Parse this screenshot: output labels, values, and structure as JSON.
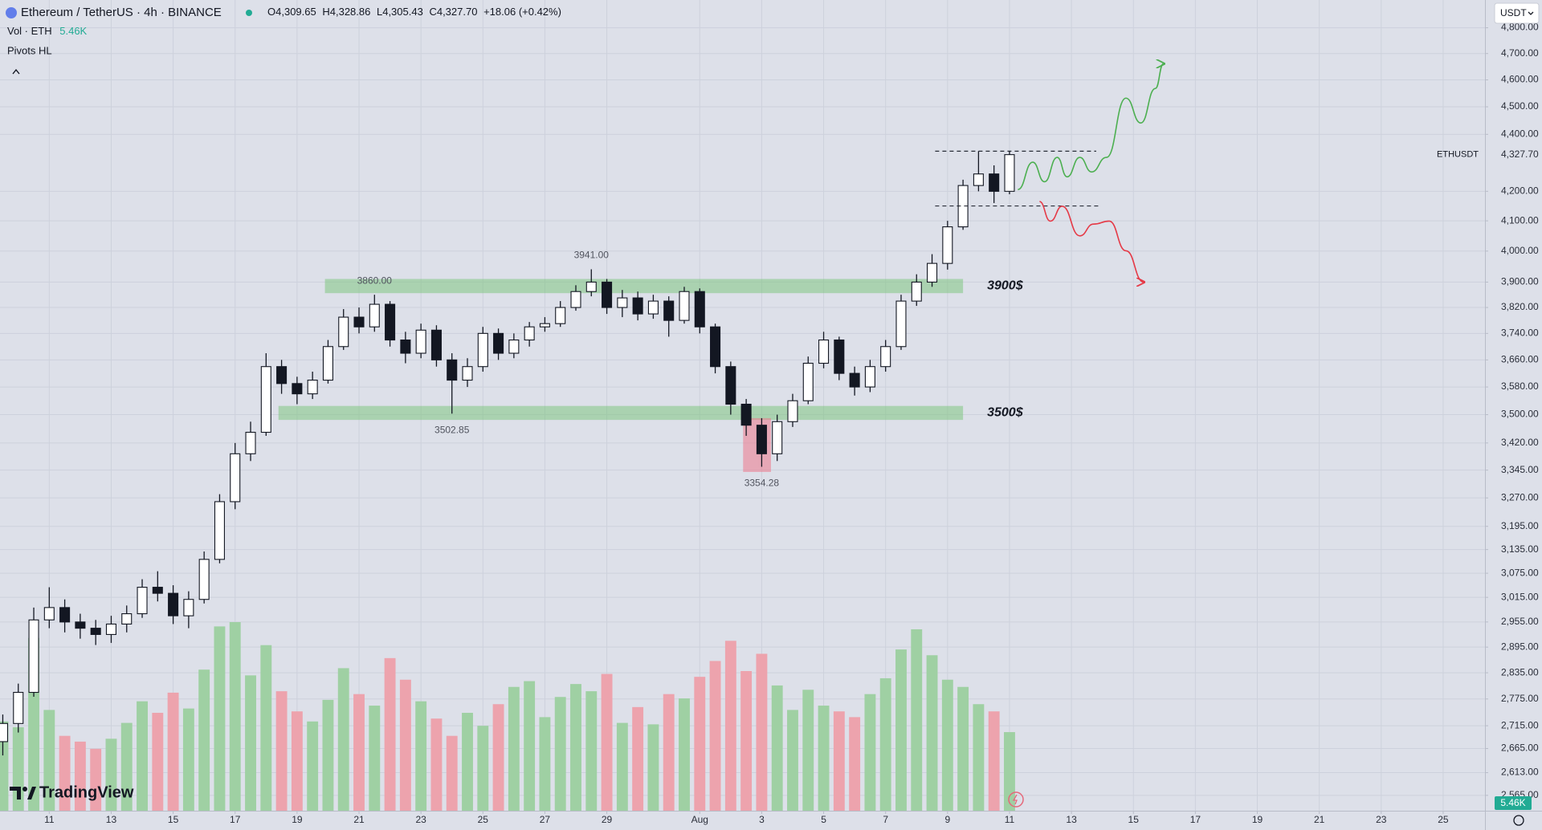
{
  "chart_data": {
    "type": "candlestick",
    "title": "Ethereum / TetherUS · 4h · BINANCE",
    "ohlc_legend": [
      {
        "key": "O",
        "label": "4,309.65"
      },
      {
        "key": "H",
        "label": "4,328.86"
      },
      {
        "key": "L",
        "label": "4,305.43"
      },
      {
        "key": "C",
        "label": "4,327.70"
      }
    ],
    "change": "+18.06 (+0.42%)",
    "volume_name": "Vol · ETH",
    "volume_last_label": "5.46K",
    "indicator": "Pivots HL",
    "currency": "USDT",
    "brand": "TradingView",
    "last_price": {
      "value": 4327.7,
      "label": "4,327.70"
    },
    "last_price_tag": "ETHUSDT",
    "log_scale": true,
    "grid": true,
    "up_color": "#ffffff",
    "down_color": "#131722",
    "volume_up_color": "#9fd0a3",
    "volume_down_color": "#eda3ad",
    "xlim": [
      9.41,
      57.35
    ],
    "xticks": [
      11,
      13,
      15,
      17,
      19,
      21,
      23,
      25,
      27,
      29,
      {
        "value": 32,
        "label": "Aug"
      },
      {
        "value": 34,
        "label": "3"
      },
      {
        "value": 36,
        "label": "5"
      },
      {
        "value": 38,
        "label": "7"
      },
      {
        "value": 40,
        "label": "9"
      },
      {
        "value": 42,
        "label": "11"
      },
      {
        "value": 44,
        "label": "13"
      },
      {
        "value": 46,
        "label": "15"
      },
      {
        "value": 48,
        "label": "17"
      },
      {
        "value": 50,
        "label": "19"
      },
      {
        "value": 52,
        "label": "21"
      },
      {
        "value": 54,
        "label": "23"
      },
      {
        "value": 56,
        "label": "25"
      }
    ],
    "ylim": [
      2533,
      4910
    ],
    "yticks": [
      {
        "value": 4800,
        "label": "4,800.00"
      },
      {
        "value": 4700,
        "label": "4,700.00"
      },
      {
        "value": 4600,
        "label": "4,600.00"
      },
      {
        "value": 4500,
        "label": "4,500.00"
      },
      {
        "value": 4400,
        "label": "4,400.00"
      },
      {
        "value": 4200,
        "label": "4,200.00"
      },
      {
        "value": 4100,
        "label": "4,100.00"
      },
      {
        "value": 4000,
        "label": "4,000.00"
      },
      {
        "value": 3900,
        "label": "3,900.00"
      },
      {
        "value": 3820,
        "label": "3,820.00"
      },
      {
        "value": 3740,
        "label": "3,740.00"
      },
      {
        "value": 3660,
        "label": "3,660.00"
      },
      {
        "value": 3580,
        "label": "3,580.00"
      },
      {
        "value": 3500,
        "label": "3,500.00"
      },
      {
        "value": 3420,
        "label": "3,420.00"
      },
      {
        "value": 3345,
        "label": "3,345.00"
      },
      {
        "value": 3270,
        "label": "3,270.00"
      },
      {
        "value": 3195,
        "label": "3,195.00"
      },
      {
        "value": 3135,
        "label": "3,135.00"
      },
      {
        "value": 3075,
        "label": "3,075.00"
      },
      {
        "value": 3015,
        "label": "3,015.00"
      },
      {
        "value": 2955,
        "label": "2,955.00"
      },
      {
        "value": 2895,
        "label": "2,895.00"
      },
      {
        "value": 2835,
        "label": "2,835.00"
      },
      {
        "value": 2775,
        "label": "2,775.00"
      },
      {
        "value": 2715,
        "label": "2,715.00"
      },
      {
        "value": 2665,
        "label": "2,665.00"
      },
      {
        "value": 2613,
        "label": "2,613.00"
      },
      {
        "value": 2565,
        "label": "2,565.00"
      }
    ],
    "x": [
      9.5,
      10,
      10.5,
      11,
      11.5,
      12,
      12.5,
      13,
      13.5,
      14,
      14.5,
      15,
      15.5,
      16,
      16.5,
      17,
      17.5,
      18,
      18.5,
      19,
      19.5,
      20,
      20.5,
      21,
      21.5,
      22,
      22.5,
      23,
      23.5,
      24,
      24.5,
      25,
      25.5,
      26,
      26.5,
      27,
      27.5,
      28,
      28.5,
      29,
      29.5,
      30,
      30.5,
      31,
      31.5,
      32,
      32.5,
      33,
      33.5,
      34,
      34.5,
      35,
      35.5,
      36,
      36.5,
      37,
      37.5,
      38,
      38.5,
      39,
      39.5,
      40,
      40.5,
      41,
      41.5,
      42
    ],
    "ohlc": [
      [
        2680,
        2740,
        2650,
        2720
      ],
      [
        2720,
        2810,
        2700,
        2790
      ],
      [
        2790,
        2990,
        2780,
        2960
      ],
      [
        2960,
        3040,
        2940,
        2990
      ],
      [
        2990,
        3010,
        2930,
        2955
      ],
      [
        2955,
        2975,
        2915,
        2940
      ],
      [
        2940,
        2960,
        2900,
        2925
      ],
      [
        2925,
        2970,
        2905,
        2950
      ],
      [
        2950,
        2995,
        2930,
        2975
      ],
      [
        2975,
        3060,
        2965,
        3040
      ],
      [
        3040,
        3080,
        3005,
        3025
      ],
      [
        3025,
        3045,
        2950,
        2970
      ],
      [
        2970,
        3030,
        2940,
        3010
      ],
      [
        3010,
        3130,
        3000,
        3110
      ],
      [
        3110,
        3280,
        3100,
        3260
      ],
      [
        3260,
        3420,
        3240,
        3390
      ],
      [
        3390,
        3480,
        3370,
        3450
      ],
      [
        3450,
        3680,
        3440,
        3640
      ],
      [
        3640,
        3660,
        3560,
        3590
      ],
      [
        3590,
        3610,
        3530,
        3560
      ],
      [
        3560,
        3625,
        3545,
        3600
      ],
      [
        3600,
        3720,
        3590,
        3700
      ],
      [
        3700,
        3815,
        3690,
        3790
      ],
      [
        3790,
        3820,
        3740,
        3760
      ],
      [
        3760,
        3860,
        3745,
        3830
      ],
      [
        3830,
        3840,
        3700,
        3720
      ],
      [
        3720,
        3745,
        3650,
        3680
      ],
      [
        3680,
        3770,
        3665,
        3750
      ],
      [
        3750,
        3765,
        3640,
        3660
      ],
      [
        3660,
        3680,
        3502.85,
        3600
      ],
      [
        3600,
        3665,
        3580,
        3640
      ],
      [
        3640,
        3760,
        3625,
        3740
      ],
      [
        3740,
        3755,
        3660,
        3680
      ],
      [
        3680,
        3740,
        3665,
        3720
      ],
      [
        3720,
        3775,
        3700,
        3760
      ],
      [
        3760,
        3790,
        3745,
        3770
      ],
      [
        3770,
        3840,
        3760,
        3820
      ],
      [
        3820,
        3890,
        3810,
        3870
      ],
      [
        3870,
        3941,
        3855,
        3900
      ],
      [
        3900,
        3910,
        3800,
        3820
      ],
      [
        3820,
        3875,
        3790,
        3850
      ],
      [
        3850,
        3870,
        3780,
        3800
      ],
      [
        3800,
        3860,
        3785,
        3840
      ],
      [
        3840,
        3855,
        3730,
        3780
      ],
      [
        3780,
        3885,
        3770,
        3870
      ],
      [
        3870,
        3880,
        3740,
        3760
      ],
      [
        3760,
        3770,
        3620,
        3640
      ],
      [
        3640,
        3655,
        3500,
        3530
      ],
      [
        3530,
        3545,
        3440,
        3470
      ],
      [
        3470,
        3490,
        3354.28,
        3390
      ],
      [
        3390,
        3500,
        3370,
        3480
      ],
      [
        3480,
        3560,
        3465,
        3540
      ],
      [
        3540,
        3670,
        3530,
        3650
      ],
      [
        3650,
        3745,
        3635,
        3720
      ],
      [
        3720,
        3730,
        3600,
        3620
      ],
      [
        3620,
        3640,
        3555,
        3580
      ],
      [
        3580,
        3660,
        3565,
        3640
      ],
      [
        3640,
        3720,
        3625,
        3700
      ],
      [
        3700,
        3860,
        3690,
        3840
      ],
      [
        3840,
        3925,
        3825,
        3900
      ],
      [
        3900,
        3990,
        3885,
        3960
      ],
      [
        3960,
        4100,
        3940,
        4080
      ],
      [
        4080,
        4240,
        4070,
        4220
      ],
      [
        4220,
        4340,
        4200,
        4260
      ],
      [
        4260,
        4290,
        4160,
        4200
      ],
      [
        4200,
        4340,
        4190,
        4327.7
      ]
    ],
    "volume": [
      6200,
      5800,
      12000,
      7000,
      5200,
      4800,
      4300,
      5000,
      6100,
      7600,
      6800,
      8200,
      7100,
      9800,
      12800,
      13100,
      9400,
      11500,
      8300,
      6900,
      6200,
      7700,
      9900,
      8100,
      7300,
      10600,
      9100,
      7600,
      6400,
      5200,
      6800,
      5900,
      7400,
      8600,
      9000,
      6500,
      7900,
      8800,
      8300,
      9500,
      6100,
      7200,
      6000,
      8100,
      7800,
      9300,
      10400,
      11800,
      9700,
      10900,
      8700,
      7000,
      8400,
      7300,
      6900,
      6500,
      8100,
      9200,
      11200,
      12600,
      10800,
      9100,
      8600,
      7400,
      6900,
      5460
    ],
    "pivots": [
      {
        "value": 3860,
        "label": "3860.00"
      },
      {
        "value": 3941,
        "label": "3941.00"
      },
      {
        "value": 3502.85,
        "label": "3502.85"
      },
      {
        "value": 3354.28,
        "label": "3354.28"
      }
    ],
    "zones": [
      {
        "label": "3900$",
        "from": 19.9,
        "to": 40.5,
        "low": 3865,
        "high": 3910,
        "color": "rgba(120,196,120,0.5)"
      },
      {
        "label": "3500$",
        "from": 18.4,
        "to": 40.5,
        "low": 3485,
        "high": 3525,
        "color": "rgba(120,196,120,0.5)"
      },
      {
        "from": 33.4,
        "to": 34.3,
        "low": 3340,
        "high": 3490,
        "color": "rgba(236,120,140,0.55)"
      }
    ],
    "levels": [
      {
        "value": 4340,
        "from": 39.6,
        "to": 44.8
      },
      {
        "value": 4150,
        "from": 39.6,
        "to": 44.9
      }
    ],
    "projections": [
      {
        "color": "#4caf50",
        "x": [
          42.27,
          42.75,
          43.13,
          43.54,
          43.86,
          44.27,
          44.65,
          45.13,
          45.76,
          46.24,
          46.71,
          46.97
        ],
        "y": [
          4206,
          4301,
          4233,
          4318,
          4250,
          4318,
          4267,
          4318,
          4532,
          4441,
          4568,
          4661
        ]
      },
      {
        "color": "#e53946",
        "x": [
          42.97,
          43.32,
          43.7,
          44.27,
          44.71,
          45.22,
          45.76,
          46.33
        ],
        "y": [
          4165,
          4099,
          4149,
          4050,
          4089,
          4099,
          4001,
          3900
        ]
      }
    ]
  }
}
